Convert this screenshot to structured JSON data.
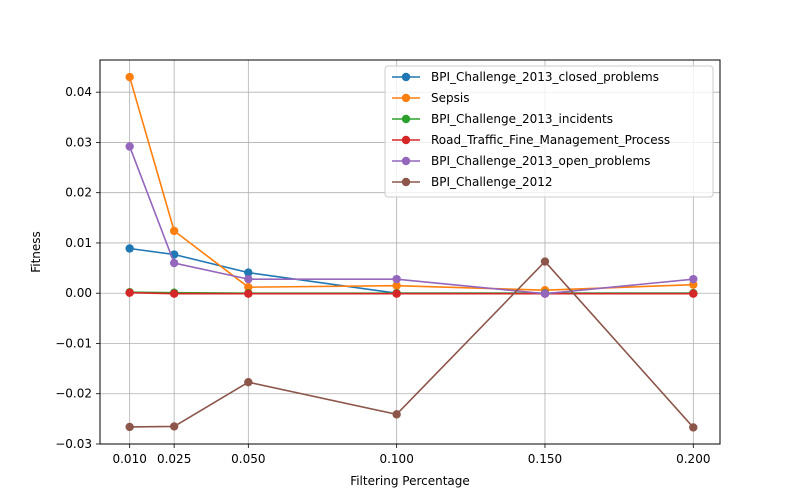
{
  "chart_data": {
    "type": "line",
    "title": "",
    "xlabel": "Filtering Percentage",
    "ylabel": "Fitness",
    "x": [
      0.01,
      0.025,
      0.05,
      0.1,
      0.15,
      0.2
    ],
    "x_tick_labels": [
      "0.010",
      "0.025",
      "0.050",
      "0.100",
      "0.150",
      "0.200"
    ],
    "y_ticks": [
      -0.03,
      -0.02,
      -0.01,
      0.0,
      0.01,
      0.02,
      0.03,
      0.04
    ],
    "y_tick_labels": [
      "−0.03",
      "−0.02",
      "−0.01",
      "0.00",
      "0.01",
      "0.02",
      "0.03",
      "0.04"
    ],
    "xlim": [
      0.0,
      0.209
    ],
    "ylim": [
      -0.03,
      0.0464
    ],
    "grid": true,
    "legend_position": "upper-right",
    "series": [
      {
        "name": "BPI_Challenge_2013_closed_problems",
        "color": "#1f77b4",
        "values": [
          0.0089,
          0.0077,
          0.0041,
          0.0,
          0.0,
          0.0
        ]
      },
      {
        "name": "Sepsis",
        "color": "#ff7f0e",
        "values": [
          0.043,
          0.0124,
          0.0012,
          0.0015,
          0.0006,
          0.0017
        ]
      },
      {
        "name": "BPI_Challenge_2013_incidents",
        "color": "#2ca02c",
        "values": [
          0.0002,
          0.0001,
          0.0,
          0.0,
          0.0,
          0.0
        ]
      },
      {
        "name": "Road_Traffic_Fine_Management_Process",
        "color": "#d62728",
        "values": [
          0.0001,
          -0.0001,
          -0.0001,
          -0.0001,
          -0.0001,
          -0.0001
        ]
      },
      {
        "name": "BPI_Challenge_2013_open_problems",
        "color": "#9467bd",
        "values": [
          0.0292,
          0.006,
          0.0028,
          0.0028,
          -0.0001,
          0.0028
        ]
      },
      {
        "name": "BPI_Challenge_2012",
        "color": "#8c564b",
        "values": [
          -0.0266,
          -0.0265,
          -0.0177,
          -0.0241,
          0.0063,
          -0.0267
        ]
      }
    ]
  }
}
